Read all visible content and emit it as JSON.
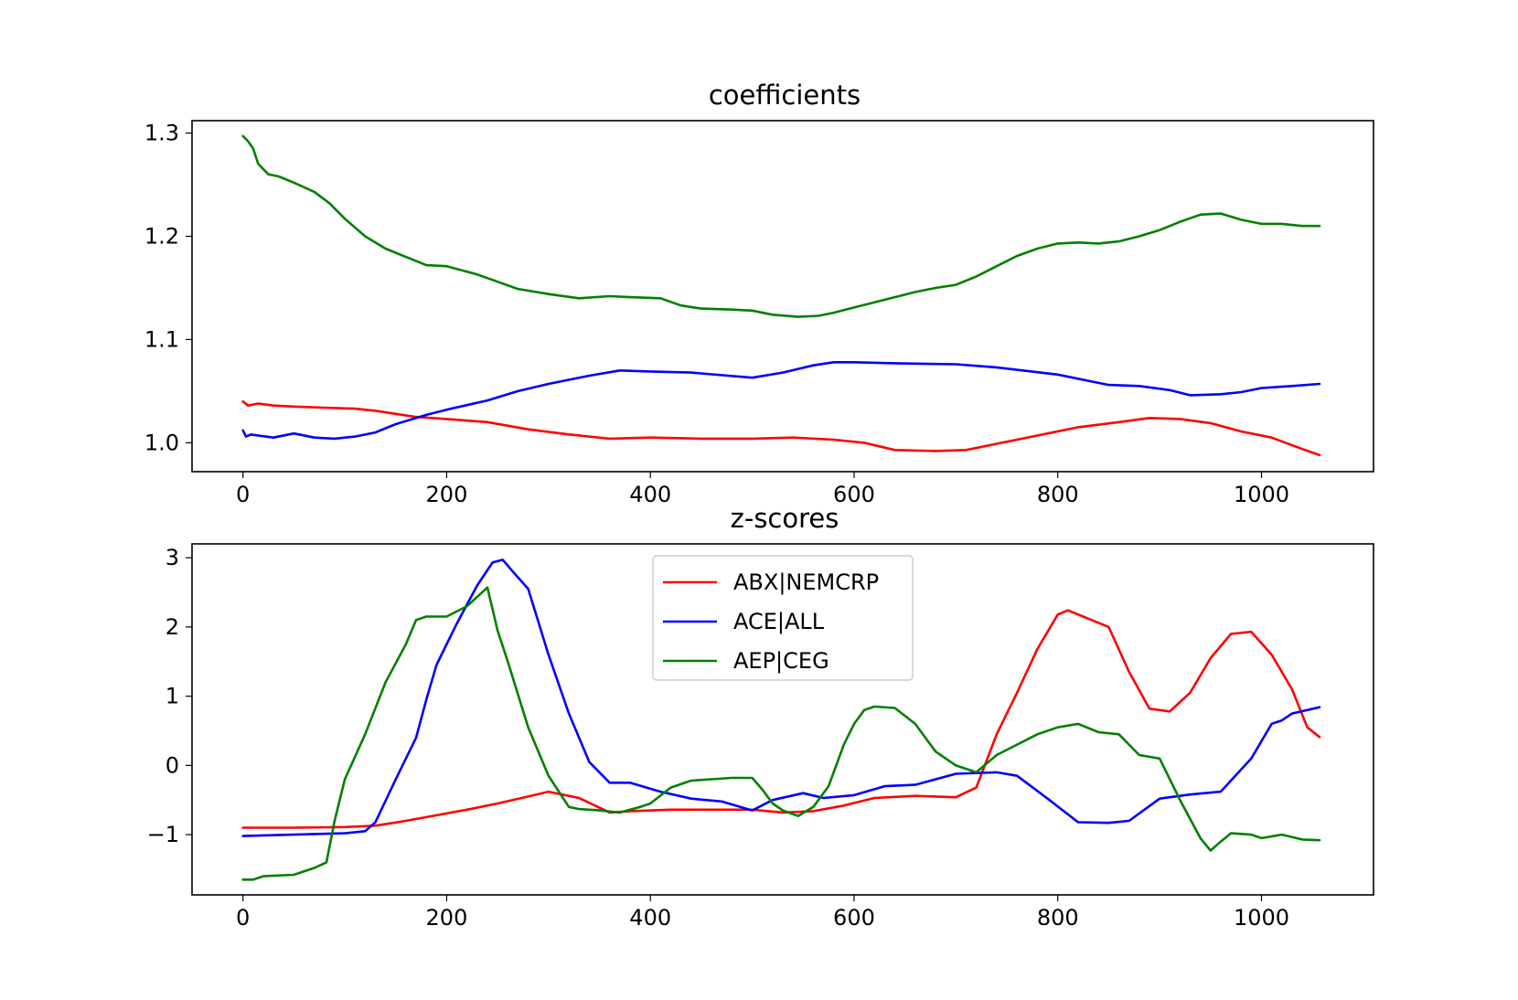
{
  "chart_data": [
    {
      "type": "line",
      "title": "coefficients",
      "xlabel": "",
      "ylabel": "",
      "xlim": [
        -50,
        1110
      ],
      "ylim": [
        0.972,
        1.312
      ],
      "xticks": [
        0,
        200,
        400,
        600,
        800,
        1000
      ],
      "xtick_labels": [
        "0",
        "200",
        "400",
        "600",
        "800",
        "1000"
      ],
      "yticks": [
        1.0,
        1.1,
        1.2,
        1.3
      ],
      "ytick_labels": [
        "1.0",
        "1.1",
        "1.2",
        "1.3"
      ],
      "grid": false,
      "legend": "none",
      "series": [
        {
          "color": "#ff0000",
          "x": [
            0,
            5,
            15,
            30,
            50,
            80,
            110,
            130,
            150,
            170,
            200,
            240,
            280,
            320,
            360,
            400,
            450,
            500,
            540,
            580,
            610,
            640,
            680,
            710,
            740,
            780,
            820,
            860,
            890,
            920,
            950,
            980,
            1010,
            1040,
            1057
          ],
          "y": [
            1.04,
            1.036,
            1.038,
            1.036,
            1.035,
            1.034,
            1.033,
            1.031,
            1.028,
            1.025,
            1.023,
            1.02,
            1.013,
            1.008,
            1.004,
            1.005,
            1.004,
            1.004,
            1.005,
            1.003,
            1.0,
            0.993,
            0.992,
            0.993,
            0.999,
            1.007,
            1.015,
            1.02,
            1.024,
            1.023,
            1.019,
            1.011,
            1.005,
            0.994,
            0.988
          ]
        },
        {
          "color": "#0000ff",
          "x": [
            0,
            3,
            8,
            15,
            30,
            50,
            70,
            90,
            110,
            130,
            150,
            180,
            200,
            240,
            270,
            300,
            340,
            370,
            400,
            440,
            500,
            530,
            560,
            580,
            600,
            640,
            700,
            740,
            800,
            850,
            880,
            910,
            930,
            960,
            980,
            1000,
            1030,
            1057
          ],
          "y": [
            1.012,
            1.006,
            1.008,
            1.007,
            1.005,
            1.009,
            1.005,
            1.004,
            1.006,
            1.01,
            1.018,
            1.027,
            1.032,
            1.041,
            1.05,
            1.057,
            1.065,
            1.07,
            1.069,
            1.068,
            1.063,
            1.068,
            1.075,
            1.078,
            1.078,
            1.077,
            1.076,
            1.073,
            1.066,
            1.056,
            1.055,
            1.051,
            1.046,
            1.047,
            1.049,
            1.053,
            1.055,
            1.057
          ]
        },
        {
          "color": "#008000",
          "x": [
            0,
            5,
            10,
            15,
            25,
            35,
            50,
            70,
            85,
            100,
            120,
            140,
            160,
            180,
            200,
            230,
            250,
            270,
            300,
            330,
            360,
            380,
            410,
            430,
            450,
            480,
            500,
            520,
            545,
            565,
            580,
            600,
            620,
            640,
            660,
            680,
            700,
            720,
            740,
            760,
            780,
            800,
            820,
            840,
            860,
            880,
            900,
            920,
            940,
            960,
            980,
            1000,
            1020,
            1040,
            1057
          ],
          "y": [
            1.297,
            1.292,
            1.285,
            1.27,
            1.26,
            1.258,
            1.252,
            1.243,
            1.232,
            1.217,
            1.2,
            1.188,
            1.18,
            1.172,
            1.171,
            1.163,
            1.156,
            1.149,
            1.144,
            1.14,
            1.142,
            1.141,
            1.14,
            1.133,
            1.13,
            1.129,
            1.128,
            1.124,
            1.122,
            1.123,
            1.126,
            1.131,
            1.136,
            1.141,
            1.146,
            1.15,
            1.153,
            1.161,
            1.171,
            1.181,
            1.188,
            1.193,
            1.194,
            1.193,
            1.195,
            1.2,
            1.206,
            1.214,
            1.221,
            1.222,
            1.216,
            1.212,
            1.212,
            1.21,
            1.21
          ]
        }
      ]
    },
    {
      "type": "line",
      "title": "z-scores",
      "xlabel": "",
      "ylabel": "",
      "xlim": [
        -50,
        1110
      ],
      "ylim": [
        -1.87,
        3.2
      ],
      "xticks": [
        0,
        200,
        400,
        600,
        800,
        1000
      ],
      "xtick_labels": [
        "0",
        "200",
        "400",
        "600",
        "800",
        "1000"
      ],
      "yticks": [
        -1,
        0,
        1,
        2,
        3
      ],
      "ytick_labels": [
        "−1",
        "0",
        "1",
        "2",
        "3"
      ],
      "grid": false,
      "legend": "upper center",
      "series": [
        {
          "name": "ABX|NEMCRP",
          "color": "#ff0000",
          "x": [
            0,
            50,
            100,
            130,
            160,
            190,
            220,
            250,
            280,
            300,
            330,
            360,
            380,
            420,
            460,
            500,
            530,
            560,
            590,
            620,
            660,
            700,
            720,
            740,
            760,
            780,
            800,
            810,
            830,
            850,
            870,
            890,
            910,
            930,
            950,
            970,
            990,
            1010,
            1030,
            1045,
            1057
          ],
          "y": [
            -0.9,
            -0.9,
            -0.89,
            -0.87,
            -0.8,
            -0.72,
            -0.64,
            -0.55,
            -0.45,
            -0.38,
            -0.47,
            -0.68,
            -0.66,
            -0.64,
            -0.64,
            -0.64,
            -0.68,
            -0.66,
            -0.58,
            -0.47,
            -0.44,
            -0.46,
            -0.32,
            0.45,
            1.05,
            1.68,
            2.18,
            2.24,
            2.12,
            2.0,
            1.35,
            0.82,
            0.78,
            1.05,
            1.55,
            1.9,
            1.93,
            1.6,
            1.1,
            0.55,
            0.41
          ]
        },
        {
          "name": "ACE|ALL",
          "color": "#0000ff",
          "x": [
            0,
            50,
            100,
            120,
            130,
            150,
            170,
            180,
            190,
            210,
            230,
            245,
            255,
            265,
            280,
            300,
            320,
            340,
            360,
            380,
            410,
            440,
            470,
            500,
            520,
            550,
            570,
            600,
            630,
            660,
            700,
            740,
            760,
            790,
            820,
            850,
            870,
            900,
            930,
            960,
            990,
            1010,
            1020,
            1030,
            1057
          ],
          "y": [
            -1.02,
            -1.0,
            -0.98,
            -0.95,
            -0.82,
            -0.2,
            0.4,
            0.95,
            1.45,
            2.05,
            2.6,
            2.93,
            2.97,
            2.8,
            2.55,
            1.6,
            0.75,
            0.05,
            -0.25,
            -0.25,
            -0.38,
            -0.48,
            -0.52,
            -0.65,
            -0.5,
            -0.4,
            -0.47,
            -0.43,
            -0.3,
            -0.28,
            -0.12,
            -0.1,
            -0.15,
            -0.48,
            -0.82,
            -0.83,
            -0.8,
            -0.48,
            -0.42,
            -0.38,
            0.1,
            0.6,
            0.65,
            0.75,
            0.84
          ]
        },
        {
          "name": "AEP|CEG",
          "color": "#008000",
          "x": [
            0,
            10,
            20,
            50,
            70,
            82,
            90,
            100,
            120,
            140,
            160,
            170,
            180,
            200,
            220,
            240,
            250,
            260,
            280,
            300,
            320,
            330,
            350,
            370,
            390,
            400,
            420,
            440,
            460,
            480,
            500,
            510,
            520,
            530,
            545,
            560,
            575,
            590,
            600,
            610,
            620,
            640,
            660,
            680,
            700,
            720,
            740,
            760,
            780,
            800,
            820,
            840,
            860,
            880,
            900,
            920,
            940,
            950,
            960,
            970,
            990,
            1000,
            1020,
            1040,
            1057
          ],
          "y": [
            -1.65,
            -1.65,
            -1.6,
            -1.58,
            -1.48,
            -1.4,
            -0.8,
            -0.2,
            0.45,
            1.2,
            1.75,
            2.1,
            2.15,
            2.15,
            2.3,
            2.57,
            1.95,
            1.5,
            0.55,
            -0.15,
            -0.6,
            -0.63,
            -0.65,
            -0.68,
            -0.6,
            -0.55,
            -0.32,
            -0.22,
            -0.2,
            -0.18,
            -0.18,
            -0.35,
            -0.55,
            -0.65,
            -0.73,
            -0.6,
            -0.3,
            0.3,
            0.6,
            0.8,
            0.85,
            0.83,
            0.6,
            0.2,
            0.0,
            -0.1,
            0.15,
            0.3,
            0.45,
            0.55,
            0.6,
            0.48,
            0.45,
            0.15,
            0.1,
            -0.5,
            -1.05,
            -1.23,
            -1.1,
            -0.98,
            -1.0,
            -1.05,
            -1.0,
            -1.07,
            -1.08
          ]
        }
      ]
    }
  ]
}
